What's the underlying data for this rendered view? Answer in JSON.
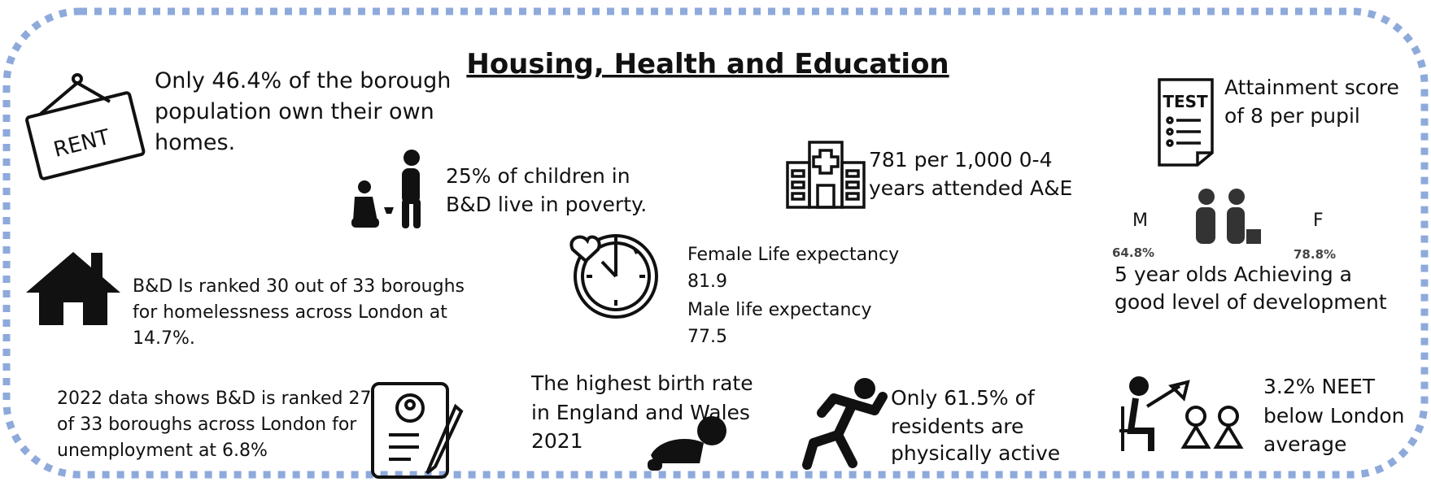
{
  "title": "Housing, Health and Education",
  "rent": {
    "lines": [
      "Only 46.4% of the borough",
      "population own their own",
      "homes."
    ]
  },
  "poverty": {
    "lines": [
      "25% of children in",
      "B&D live in poverty."
    ]
  },
  "hospital": {
    "lines": [
      "781 per 1,000 0-4",
      "years attended A&E"
    ]
  },
  "attainment": {
    "lines": [
      "Attainment score",
      "of 8 per pupil"
    ]
  },
  "homelessness": {
    "lines": [
      "B&D Is ranked 30 out of 33 boroughs",
      "for homelessness across London at",
      "14.7%."
    ]
  },
  "life_expectancy": {
    "lines": [
      "Female Life expectancy",
      "81.9",
      "Male life expectancy",
      "77.5"
    ]
  },
  "development": {
    "m_label": "M",
    "f_label": "F",
    "m_value": "64.8%",
    "f_value": "78.8%",
    "lines": [
      "5 year olds Achieving a",
      "good level of development"
    ]
  },
  "unemployment": {
    "lines": [
      "2022 data shows B&D is ranked 27",
      "of 33 boroughs across London for",
      "unemployment at 6.8%"
    ]
  },
  "birth_rate": {
    "lines": [
      "The highest birth rate",
      "in England and Wales",
      "2021"
    ]
  },
  "activity": {
    "lines": [
      "Only 61.5% of",
      "residents are",
      "physically active"
    ]
  },
  "neet": {
    "lines": [
      "3.2% NEET",
      "below London",
      "average"
    ]
  },
  "icons": {
    "rent_sign": "RENT",
    "test_sheet": "TEST"
  }
}
